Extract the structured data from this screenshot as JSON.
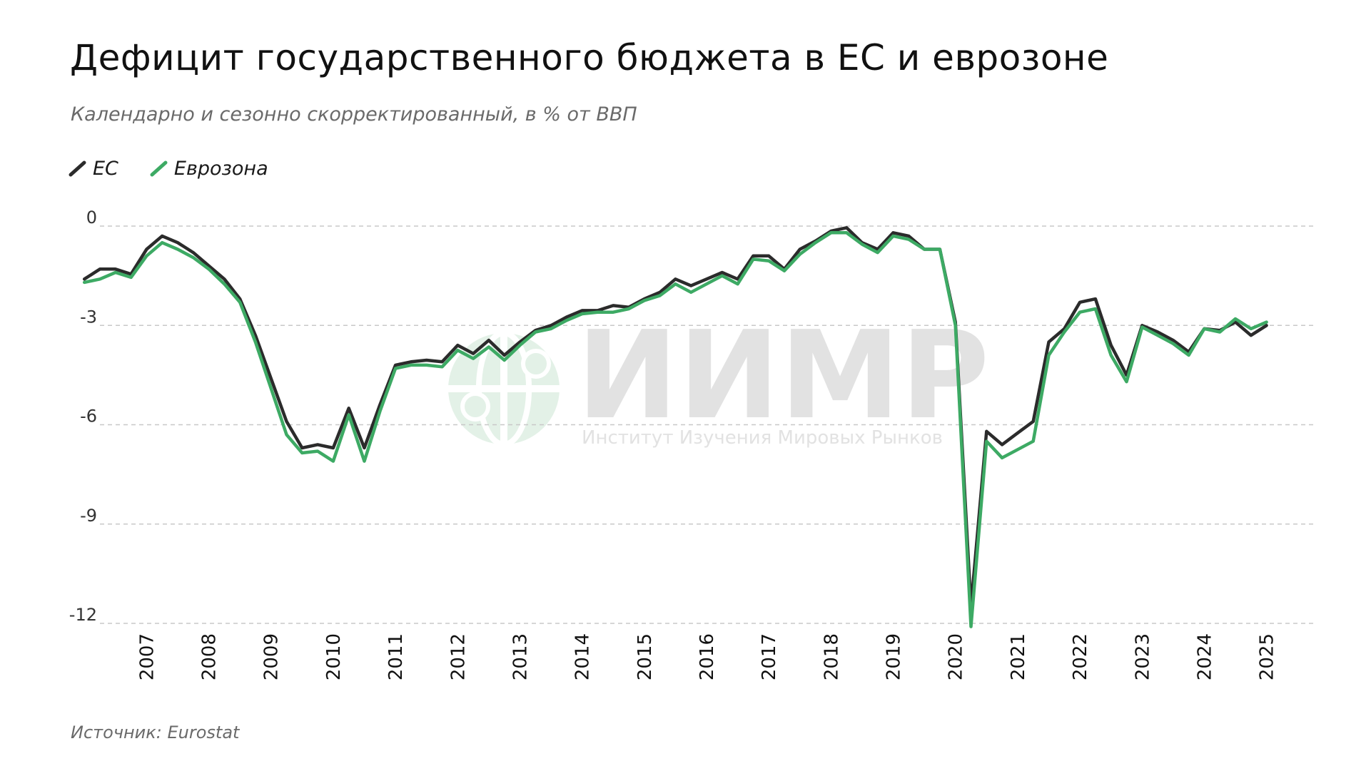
{
  "header": {
    "title": "Дефицит государственного бюджета в ЕС и еврозоне",
    "subtitle": "Календарно и сезонно скорректированный, в % от ВВП"
  },
  "footer": {
    "source": "Источник: Eurostat"
  },
  "watermark": {
    "name": "ИИМР",
    "tagline": "Институт Изучения Мировых Рынков"
  },
  "colors": {
    "eu": "#2b2b2b",
    "eurozone": "#3daa64",
    "grid": "#c8c8c8",
    "watermark_text": "#e2e2e2",
    "watermark_globe": "#e3f1e7"
  },
  "chart_data": {
    "type": "line",
    "ylim": [
      -12,
      0
    ],
    "yticks": [
      0,
      -3,
      -6,
      -9,
      -12
    ],
    "ytick_labels": [
      "0",
      "-3",
      "-6",
      "-9",
      "-12"
    ],
    "xlim": [
      2006.25,
      2025.75
    ],
    "xticks": [
      2007,
      2008,
      2009,
      2010,
      2011,
      2012,
      2013,
      2014,
      2015,
      2016,
      2017,
      2018,
      2019,
      2020,
      2021,
      2022,
      2023,
      2024,
      2025
    ],
    "xtick_labels": [
      "2007",
      "2008",
      "2009",
      "2010",
      "2011",
      "2012",
      "2013",
      "2014",
      "2015",
      "2016",
      "2017",
      "2018",
      "2019",
      "2020",
      "2021",
      "2022",
      "2023",
      "2024",
      "2025"
    ],
    "grid": "horizontal dashed",
    "legend_position": "top-left",
    "series": [
      {
        "name": "ЕС",
        "color": "#2b2b2b",
        "values": [
          [
            2006.0,
            -1.6
          ],
          [
            2006.25,
            -1.3
          ],
          [
            2006.5,
            -1.3
          ],
          [
            2006.75,
            -1.45
          ],
          [
            2007.0,
            -0.7
          ],
          [
            2007.25,
            -0.3
          ],
          [
            2007.5,
            -0.5
          ],
          [
            2007.75,
            -0.8
          ],
          [
            2008.0,
            -1.2
          ],
          [
            2008.25,
            -1.6
          ],
          [
            2008.5,
            -2.2
          ],
          [
            2008.75,
            -3.3
          ],
          [
            2009.0,
            -4.6
          ],
          [
            2009.25,
            -5.9
          ],
          [
            2009.5,
            -6.7
          ],
          [
            2009.75,
            -6.6
          ],
          [
            2010.0,
            -6.7
          ],
          [
            2010.25,
            -5.5
          ],
          [
            2010.5,
            -6.7
          ],
          [
            2010.75,
            -5.4
          ],
          [
            2011.0,
            -4.2
          ],
          [
            2011.25,
            -4.1
          ],
          [
            2011.5,
            -4.05
          ],
          [
            2011.75,
            -4.1
          ],
          [
            2012.0,
            -3.6
          ],
          [
            2012.25,
            -3.85
          ],
          [
            2012.5,
            -3.45
          ],
          [
            2012.75,
            -3.9
          ],
          [
            2013.0,
            -3.5
          ],
          [
            2013.25,
            -3.15
          ],
          [
            2013.5,
            -3.0
          ],
          [
            2013.75,
            -2.75
          ],
          [
            2014.0,
            -2.55
          ],
          [
            2014.25,
            -2.55
          ],
          [
            2014.5,
            -2.4
          ],
          [
            2014.75,
            -2.45
          ],
          [
            2015.0,
            -2.2
          ],
          [
            2015.25,
            -2.0
          ],
          [
            2015.5,
            -1.6
          ],
          [
            2015.75,
            -1.8
          ],
          [
            2016.0,
            -1.6
          ],
          [
            2016.25,
            -1.4
          ],
          [
            2016.5,
            -1.6
          ],
          [
            2016.75,
            -0.9
          ],
          [
            2017.0,
            -0.9
          ],
          [
            2017.25,
            -1.3
          ],
          [
            2017.5,
            -0.7
          ],
          [
            2017.75,
            -0.45
          ],
          [
            2018.0,
            -0.15
          ],
          [
            2018.25,
            -0.05
          ],
          [
            2018.5,
            -0.5
          ],
          [
            2018.75,
            -0.7
          ],
          [
            2019.0,
            -0.2
          ],
          [
            2019.25,
            -0.3
          ],
          [
            2019.5,
            -0.7
          ],
          [
            2019.75,
            -0.7
          ],
          [
            2020.0,
            -2.9
          ],
          [
            2020.25,
            -11.5
          ],
          [
            2020.5,
            -6.2
          ],
          [
            2020.75,
            -6.6
          ],
          [
            2021.0,
            -6.25
          ],
          [
            2021.25,
            -5.9
          ],
          [
            2021.5,
            -3.5
          ],
          [
            2021.75,
            -3.1
          ],
          [
            2022.0,
            -2.3
          ],
          [
            2022.25,
            -2.2
          ],
          [
            2022.5,
            -3.6
          ],
          [
            2022.75,
            -4.5
          ],
          [
            2023.0,
            -3.0
          ],
          [
            2023.25,
            -3.2
          ],
          [
            2023.5,
            -3.45
          ],
          [
            2023.75,
            -3.8
          ],
          [
            2024.0,
            -3.1
          ],
          [
            2024.25,
            -3.15
          ],
          [
            2024.5,
            -2.9
          ],
          [
            2024.75,
            -3.3
          ],
          [
            2025.0,
            -3.0
          ]
        ]
      },
      {
        "name": "Еврозона",
        "color": "#3daa64",
        "values": [
          [
            2006.0,
            -1.7
          ],
          [
            2006.25,
            -1.6
          ],
          [
            2006.5,
            -1.4
          ],
          [
            2006.75,
            -1.55
          ],
          [
            2007.0,
            -0.9
          ],
          [
            2007.25,
            -0.5
          ],
          [
            2007.5,
            -0.7
          ],
          [
            2007.75,
            -0.95
          ],
          [
            2008.0,
            -1.3
          ],
          [
            2008.25,
            -1.75
          ],
          [
            2008.5,
            -2.3
          ],
          [
            2008.75,
            -3.5
          ],
          [
            2009.0,
            -4.9
          ],
          [
            2009.25,
            -6.3
          ],
          [
            2009.5,
            -6.85
          ],
          [
            2009.75,
            -6.8
          ],
          [
            2010.0,
            -7.1
          ],
          [
            2010.25,
            -5.7
          ],
          [
            2010.5,
            -7.1
          ],
          [
            2010.75,
            -5.6
          ],
          [
            2011.0,
            -4.3
          ],
          [
            2011.25,
            -4.2
          ],
          [
            2011.5,
            -4.2
          ],
          [
            2011.75,
            -4.25
          ],
          [
            2012.0,
            -3.75
          ],
          [
            2012.25,
            -4.0
          ],
          [
            2012.5,
            -3.65
          ],
          [
            2012.75,
            -4.05
          ],
          [
            2013.0,
            -3.6
          ],
          [
            2013.25,
            -3.2
          ],
          [
            2013.5,
            -3.1
          ],
          [
            2013.75,
            -2.85
          ],
          [
            2014.0,
            -2.65
          ],
          [
            2014.25,
            -2.6
          ],
          [
            2014.5,
            -2.6
          ],
          [
            2014.75,
            -2.5
          ],
          [
            2015.0,
            -2.25
          ],
          [
            2015.25,
            -2.1
          ],
          [
            2015.5,
            -1.75
          ],
          [
            2015.75,
            -2.0
          ],
          [
            2016.0,
            -1.75
          ],
          [
            2016.25,
            -1.5
          ],
          [
            2016.5,
            -1.75
          ],
          [
            2016.75,
            -1.0
          ],
          [
            2017.0,
            -1.05
          ],
          [
            2017.25,
            -1.35
          ],
          [
            2017.5,
            -0.85
          ],
          [
            2017.75,
            -0.5
          ],
          [
            2018.0,
            -0.2
          ],
          [
            2018.25,
            -0.2
          ],
          [
            2018.5,
            -0.55
          ],
          [
            2018.75,
            -0.8
          ],
          [
            2019.0,
            -0.3
          ],
          [
            2019.25,
            -0.4
          ],
          [
            2019.5,
            -0.7
          ],
          [
            2019.75,
            -0.7
          ],
          [
            2020.0,
            -3.0
          ],
          [
            2020.25,
            -12.1
          ],
          [
            2020.5,
            -6.5
          ],
          [
            2020.75,
            -7.0
          ],
          [
            2021.0,
            -6.75
          ],
          [
            2021.25,
            -6.5
          ],
          [
            2021.5,
            -3.9
          ],
          [
            2021.75,
            -3.2
          ],
          [
            2022.0,
            -2.6
          ],
          [
            2022.25,
            -2.5
          ],
          [
            2022.5,
            -3.9
          ],
          [
            2022.75,
            -4.7
          ],
          [
            2023.0,
            -3.05
          ],
          [
            2023.25,
            -3.3
          ],
          [
            2023.5,
            -3.55
          ],
          [
            2023.75,
            -3.9
          ],
          [
            2024.0,
            -3.1
          ],
          [
            2024.25,
            -3.2
          ],
          [
            2024.5,
            -2.8
          ],
          [
            2024.75,
            -3.1
          ],
          [
            2025.0,
            -2.9
          ]
        ]
      }
    ]
  }
}
